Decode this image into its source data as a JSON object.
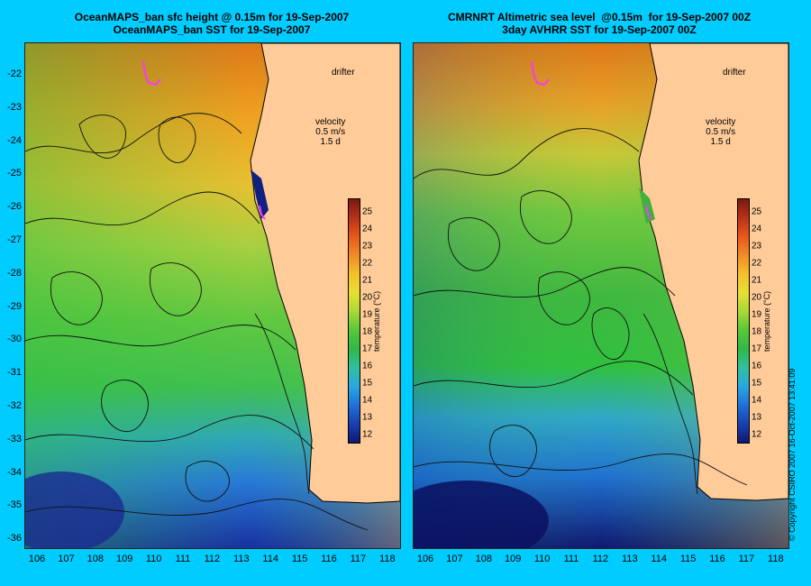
{
  "left_panel": {
    "title": "OceanMAPS_ban sfc height @ 0.15m for 19-Sep-2007\nOceanMAPS_ban SST for 19-Sep-2007",
    "drifter_label": "drifter",
    "velocity_label": "velocity\n0.5 m/s\n1.5 d"
  },
  "right_panel": {
    "title": "CMRNRT Altimetric sea level  @0.15m  for 19-Sep-2007 00Z\n3day AVHRR SST for 19-Sep-2007 00Z",
    "drifter_label": "drifter",
    "velocity_label": "velocity\n0.5 m/s\n1.5 d"
  },
  "axes": {
    "latitudes": [
      "-22",
      "-23",
      "-24",
      "-25",
      "-26",
      "-27",
      "-28",
      "-29",
      "-30",
      "-31",
      "-32",
      "-33",
      "-34",
      "-35",
      "-36"
    ],
    "longitudes": [
      "106",
      "107",
      "108",
      "109",
      "110",
      "111",
      "112",
      "113",
      "114",
      "115",
      "116",
      "117",
      "118"
    ]
  },
  "colorbar": {
    "title": "temperature (°C)",
    "ticks": [
      "25",
      "24",
      "23",
      "22",
      "21",
      "20",
      "19",
      "18",
      "17",
      "16",
      "15",
      "14",
      "13",
      "12"
    ],
    "min": 11.5,
    "max": 25.8
  },
  "copyright": "© Copyright CSIRO 2007   16-Oct-2007 13:41:09",
  "colors": {
    "background": "#00ccff",
    "land": "#ffcc99",
    "drifter": "#ff33ff"
  }
}
